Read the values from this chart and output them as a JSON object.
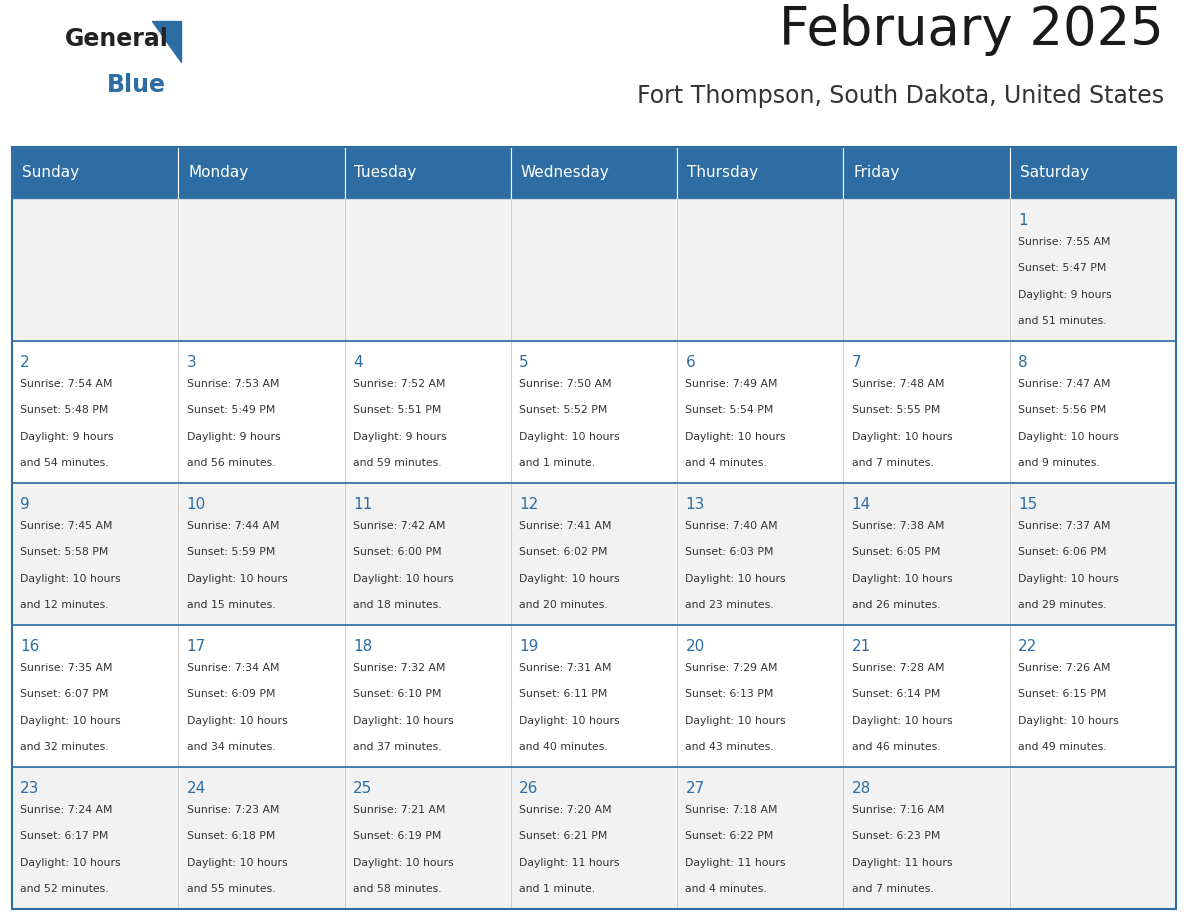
{
  "title": "February 2025",
  "subtitle": "Fort Thompson, South Dakota, United States",
  "header_color": "#2E6DA4",
  "header_text_color": "#FFFFFF",
  "cell_bg_odd": "#F2F2F2",
  "cell_bg_even": "#FFFFFF",
  "day_number_color": "#2E6DA4",
  "text_color": "#333333",
  "days_of_week": [
    "Sunday",
    "Monday",
    "Tuesday",
    "Wednesday",
    "Thursday",
    "Friday",
    "Saturday"
  ],
  "weeks": [
    [
      {
        "day": "",
        "info": ""
      },
      {
        "day": "",
        "info": ""
      },
      {
        "day": "",
        "info": ""
      },
      {
        "day": "",
        "info": ""
      },
      {
        "day": "",
        "info": ""
      },
      {
        "day": "",
        "info": ""
      },
      {
        "day": "1",
        "info": "Sunrise: 7:55 AM\nSunset: 5:47 PM\nDaylight: 9 hours\nand 51 minutes."
      }
    ],
    [
      {
        "day": "2",
        "info": "Sunrise: 7:54 AM\nSunset: 5:48 PM\nDaylight: 9 hours\nand 54 minutes."
      },
      {
        "day": "3",
        "info": "Sunrise: 7:53 AM\nSunset: 5:49 PM\nDaylight: 9 hours\nand 56 minutes."
      },
      {
        "day": "4",
        "info": "Sunrise: 7:52 AM\nSunset: 5:51 PM\nDaylight: 9 hours\nand 59 minutes."
      },
      {
        "day": "5",
        "info": "Sunrise: 7:50 AM\nSunset: 5:52 PM\nDaylight: 10 hours\nand 1 minute."
      },
      {
        "day": "6",
        "info": "Sunrise: 7:49 AM\nSunset: 5:54 PM\nDaylight: 10 hours\nand 4 minutes."
      },
      {
        "day": "7",
        "info": "Sunrise: 7:48 AM\nSunset: 5:55 PM\nDaylight: 10 hours\nand 7 minutes."
      },
      {
        "day": "8",
        "info": "Sunrise: 7:47 AM\nSunset: 5:56 PM\nDaylight: 10 hours\nand 9 minutes."
      }
    ],
    [
      {
        "day": "9",
        "info": "Sunrise: 7:45 AM\nSunset: 5:58 PM\nDaylight: 10 hours\nand 12 minutes."
      },
      {
        "day": "10",
        "info": "Sunrise: 7:44 AM\nSunset: 5:59 PM\nDaylight: 10 hours\nand 15 minutes."
      },
      {
        "day": "11",
        "info": "Sunrise: 7:42 AM\nSunset: 6:00 PM\nDaylight: 10 hours\nand 18 minutes."
      },
      {
        "day": "12",
        "info": "Sunrise: 7:41 AM\nSunset: 6:02 PM\nDaylight: 10 hours\nand 20 minutes."
      },
      {
        "day": "13",
        "info": "Sunrise: 7:40 AM\nSunset: 6:03 PM\nDaylight: 10 hours\nand 23 minutes."
      },
      {
        "day": "14",
        "info": "Sunrise: 7:38 AM\nSunset: 6:05 PM\nDaylight: 10 hours\nand 26 minutes."
      },
      {
        "day": "15",
        "info": "Sunrise: 7:37 AM\nSunset: 6:06 PM\nDaylight: 10 hours\nand 29 minutes."
      }
    ],
    [
      {
        "day": "16",
        "info": "Sunrise: 7:35 AM\nSunset: 6:07 PM\nDaylight: 10 hours\nand 32 minutes."
      },
      {
        "day": "17",
        "info": "Sunrise: 7:34 AM\nSunset: 6:09 PM\nDaylight: 10 hours\nand 34 minutes."
      },
      {
        "day": "18",
        "info": "Sunrise: 7:32 AM\nSunset: 6:10 PM\nDaylight: 10 hours\nand 37 minutes."
      },
      {
        "day": "19",
        "info": "Sunrise: 7:31 AM\nSunset: 6:11 PM\nDaylight: 10 hours\nand 40 minutes."
      },
      {
        "day": "20",
        "info": "Sunrise: 7:29 AM\nSunset: 6:13 PM\nDaylight: 10 hours\nand 43 minutes."
      },
      {
        "day": "21",
        "info": "Sunrise: 7:28 AM\nSunset: 6:14 PM\nDaylight: 10 hours\nand 46 minutes."
      },
      {
        "day": "22",
        "info": "Sunrise: 7:26 AM\nSunset: 6:15 PM\nDaylight: 10 hours\nand 49 minutes."
      }
    ],
    [
      {
        "day": "23",
        "info": "Sunrise: 7:24 AM\nSunset: 6:17 PM\nDaylight: 10 hours\nand 52 minutes."
      },
      {
        "day": "24",
        "info": "Sunrise: 7:23 AM\nSunset: 6:18 PM\nDaylight: 10 hours\nand 55 minutes."
      },
      {
        "day": "25",
        "info": "Sunrise: 7:21 AM\nSunset: 6:19 PM\nDaylight: 10 hours\nand 58 minutes."
      },
      {
        "day": "26",
        "info": "Sunrise: 7:20 AM\nSunset: 6:21 PM\nDaylight: 11 hours\nand 1 minute."
      },
      {
        "day": "27",
        "info": "Sunrise: 7:18 AM\nSunset: 6:22 PM\nDaylight: 11 hours\nand 4 minutes."
      },
      {
        "day": "28",
        "info": "Sunrise: 7:16 AM\nSunset: 6:23 PM\nDaylight: 11 hours\nand 7 minutes."
      },
      {
        "day": "",
        "info": ""
      }
    ]
  ],
  "logo_text1": "General",
  "logo_text2": "Blue",
  "logo_color1": "#222222",
  "logo_color2": "#2E6DA4",
  "n_weeks": 5,
  "n_cols": 7
}
